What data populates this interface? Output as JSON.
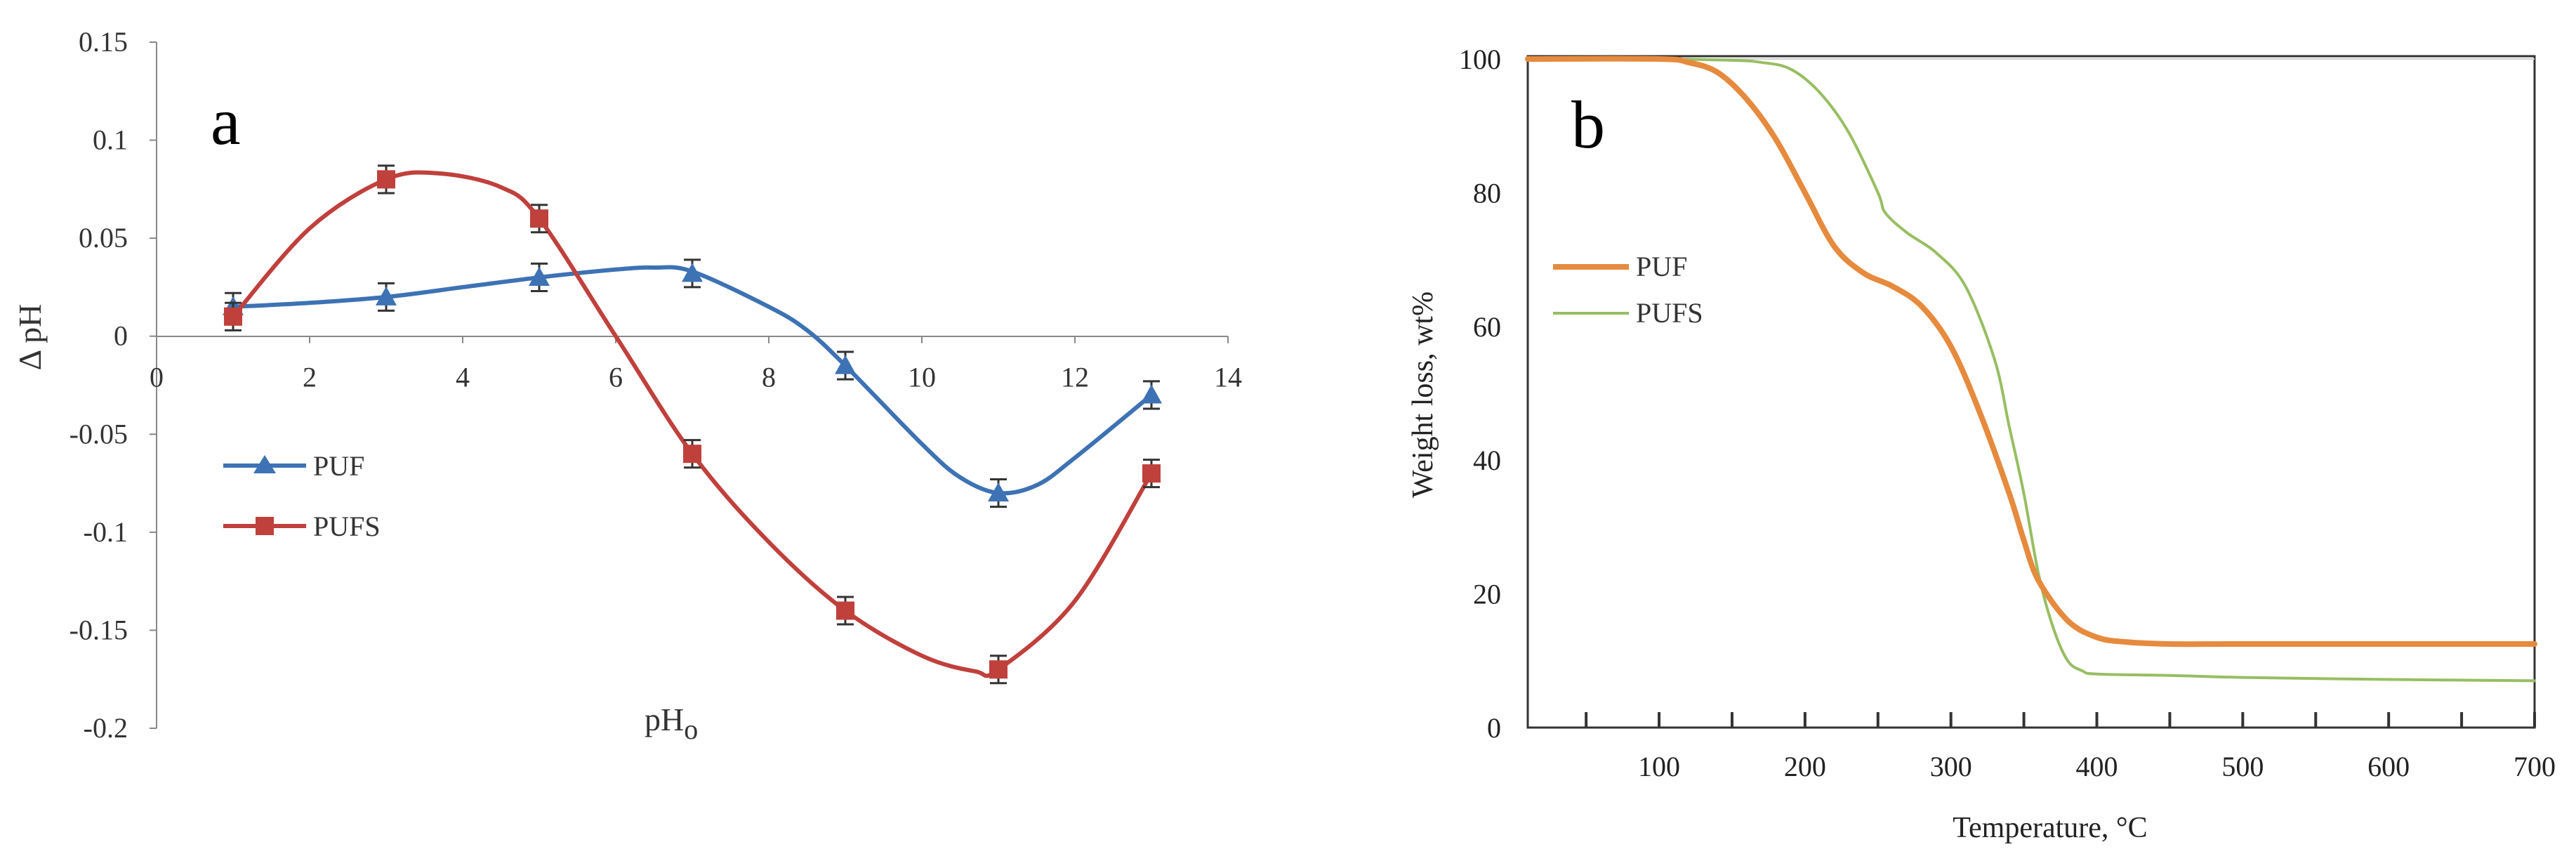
{
  "chart_data": [
    {
      "type": "line",
      "panel_label": "a",
      "xlabel": "pH",
      "xlabel_sub": "o",
      "ylabel": "Δ pH",
      "xlim": [
        0,
        14
      ],
      "ylim": [
        -0.2,
        0.15
      ],
      "x_ticks": [
        0,
        2,
        4,
        6,
        8,
        10,
        12,
        14
      ],
      "y_ticks": [
        0.15,
        0.1,
        0.05,
        0,
        -0.05,
        -0.1,
        -0.15,
        -0.2
      ],
      "x_tick_labels": [
        "0",
        "2",
        "4",
        "6",
        "8",
        "10",
        "12",
        "14"
      ],
      "y_tick_labels": [
        "0.15",
        "0.1",
        "0.05",
        "0",
        "-0.05",
        "-0.1",
        "-0.15",
        "-0.2"
      ],
      "legend": "left-center",
      "grid": false,
      "error_bar": 0.007,
      "series": [
        {
          "name": "PUF",
          "color": "#3d72b4",
          "marker": "triangle",
          "x": [
            1,
            3,
            5,
            7,
            9,
            11,
            13
          ],
          "y": [
            0.015,
            0.02,
            0.03,
            0.032,
            -0.015,
            -0.08,
            -0.03
          ],
          "curve": [
            [
              1,
              0.015
            ],
            [
              2,
              0.017
            ],
            [
              3,
              0.02
            ],
            [
              4,
              0.025
            ],
            [
              5,
              0.03
            ],
            [
              6,
              0.034
            ],
            [
              6.5,
              0.035
            ],
            [
              7,
              0.033
            ],
            [
              8,
              0.015
            ],
            [
              8.5,
              0.003
            ],
            [
              9,
              -0.015
            ],
            [
              10,
              -0.055
            ],
            [
              10.5,
              -0.072
            ],
            [
              11,
              -0.08
            ],
            [
              11.5,
              -0.076
            ],
            [
              12,
              -0.062
            ],
            [
              13,
              -0.03
            ]
          ]
        },
        {
          "name": "PUFS",
          "color": "#c0403c",
          "marker": "square",
          "x": [
            1,
            3,
            5,
            7,
            9,
            11,
            13
          ],
          "y": [
            0.01,
            0.08,
            0.06,
            -0.06,
            -0.14,
            -0.17,
            -0.07
          ],
          "curve": [
            [
              1,
              0.01
            ],
            [
              2,
              0.055
            ],
            [
              3,
              0.08
            ],
            [
              3.7,
              0.083
            ],
            [
              4.5,
              0.076
            ],
            [
              5,
              0.06
            ],
            [
              6,
              0.0
            ],
            [
              7,
              -0.06
            ],
            [
              8,
              -0.105
            ],
            [
              9,
              -0.14
            ],
            [
              10,
              -0.163
            ],
            [
              10.7,
              -0.171
            ],
            [
              11,
              -0.17
            ],
            [
              12,
              -0.135
            ],
            [
              13,
              -0.07
            ]
          ]
        }
      ]
    },
    {
      "type": "line",
      "panel_label": "b",
      "xlabel": "Temperature, °C",
      "ylabel": "Weight loss, wt%",
      "xlim": [
        10,
        700
      ],
      "ylim": [
        0,
        100
      ],
      "x_ticks": [
        100,
        200,
        300,
        400,
        500,
        600,
        700
      ],
      "y_ticks": [
        0,
        20,
        40,
        60,
        80,
        100
      ],
      "x_tick_labels": [
        "100",
        "200",
        "300",
        "400",
        "500",
        "600",
        "700"
      ],
      "y_tick_labels": [
        "0",
        "20",
        "40",
        "60",
        "80",
        "100"
      ],
      "x_minor_ticks": [
        50,
        150,
        250,
        350,
        450,
        550,
        650
      ],
      "legend": "left-center",
      "grid": false,
      "series": [
        {
          "name": "PUF",
          "color": "#e68a3e",
          "width": 8,
          "x": [
            10,
            100,
            120,
            140,
            160,
            180,
            200,
            220,
            240,
            260,
            280,
            300,
            320,
            340,
            350,
            360,
            380,
            400,
            420,
            450,
            500,
            600,
            700
          ],
          "y": [
            100,
            100,
            99.5,
            98,
            94,
            88,
            80,
            72,
            68,
            66,
            63,
            57,
            47,
            35,
            28,
            22,
            16,
            13.5,
            12.8,
            12.5,
            12.5,
            12.5,
            12.5
          ]
        },
        {
          "name": "PUFS",
          "color": "#97be62",
          "width": 4,
          "x": [
            10,
            100,
            150,
            170,
            190,
            210,
            230,
            250,
            255,
            270,
            290,
            310,
            330,
            340,
            350,
            360,
            370,
            380,
            390,
            400,
            450,
            500,
            600,
            700
          ],
          "y": [
            100,
            100,
            99.8,
            99.5,
            98.5,
            95,
            89,
            80,
            77,
            74,
            71,
            66,
            55,
            45,
            35,
            23,
            15,
            10,
            8.5,
            8,
            7.8,
            7.5,
            7.2,
            7
          ]
        }
      ]
    }
  ]
}
